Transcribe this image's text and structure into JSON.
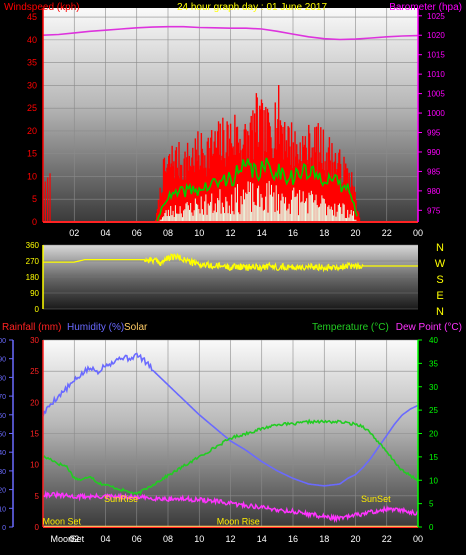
{
  "colors": {
    "background": "#000000",
    "wind_speed": "#ff0000",
    "wind_gust": "#ff0000",
    "wind_avg": "#00cc00",
    "wind_low": "#e8ffe8",
    "barometer": "#dd33dd",
    "direction": "#ffff00",
    "rainfall": "#ff2222",
    "humidity": "#6a6aff",
    "solar": "#ffcc66",
    "temperature": "#22cc22",
    "dew_point": "#ff33ff",
    "axis_left": "#ff0000",
    "axis_right": "#ff00ff",
    "axis_temp": "#00ff00",
    "sun_moon": "#ffee00"
  },
  "chart_data": [
    {
      "type": "line",
      "panel": "wind-barometer",
      "title": "24 hour graph day : 01 June 2017",
      "ylabel_left": "Windspeed (kph)",
      "ylabel_right": "Barometer (hpa)",
      "x_ticks": [
        "02",
        "04",
        "06",
        "08",
        "10",
        "12",
        "14",
        "16",
        "18",
        "20",
        "22",
        "00"
      ],
      "y_left_ticks": [
        "0",
        "5",
        "10",
        "15",
        "20",
        "25",
        "30",
        "35",
        "40",
        "45"
      ],
      "y_right_ticks": [
        "975",
        "980",
        "985",
        "990",
        "995",
        "1000",
        "1005",
        "1010",
        "1015",
        "1020",
        "1025"
      ],
      "ylim_left": [
        0,
        47
      ],
      "ylim_right": [
        972,
        1027
      ],
      "series": [
        {
          "name": "Barometer (hpa)",
          "axis": "right",
          "x": [
            0,
            1,
            2,
            3,
            4,
            5,
            6,
            7,
            8,
            9,
            10,
            11,
            12,
            13,
            14,
            15,
            16,
            17,
            18,
            19,
            20,
            21,
            22,
            23,
            24
          ],
          "values": [
            1020.0,
            1020.2,
            1020.6,
            1021.0,
            1021.3,
            1021.6,
            1021.9,
            1022.1,
            1022.2,
            1022.2,
            1022.0,
            1021.9,
            1021.8,
            1021.8,
            1021.6,
            1021.0,
            1020.3,
            1019.6,
            1019.1,
            1018.9,
            1019.0,
            1019.3,
            1019.6,
            1019.8,
            1019.9
          ]
        },
        {
          "name": "wind-gust",
          "axis": "left",
          "x": [
            0,
            0.6,
            7.2,
            7.7,
            8.3,
            9.0,
            9.7,
            10.3,
            11.0,
            11.7,
            12.3,
            13.0,
            13.7,
            14.3,
            15.0,
            15.7,
            16.3,
            17.0,
            17.7,
            18.3,
            19.0,
            19.7,
            20.0,
            20.3,
            24
          ],
          "values": [
            0,
            0,
            0,
            12,
            16,
            15,
            17,
            18,
            19,
            21,
            22,
            20,
            25,
            22,
            27,
            21,
            18,
            19,
            19,
            17,
            14,
            11,
            6,
            0,
            0
          ]
        },
        {
          "name": "wind-average",
          "axis": "left",
          "x": [
            0,
            7.3,
            7.8,
            8.5,
            9.2,
            10.0,
            10.7,
            11.5,
            12.2,
            13.0,
            13.7,
            14.5,
            15.2,
            16.0,
            16.7,
            17.5,
            18.2,
            19.0,
            19.7,
            20.2,
            24
          ],
          "values": [
            0,
            0,
            5,
            6,
            7,
            7,
            8,
            9,
            10,
            12,
            11,
            12,
            11,
            10,
            11,
            10,
            10,
            8,
            7,
            0,
            0
          ]
        },
        {
          "name": "wind-low",
          "axis": "left",
          "x": [
            0,
            7.4,
            7.9,
            8.6,
            9.3,
            10.0,
            10.8,
            11.5,
            12.3,
            13.0,
            13.8,
            14.5,
            15.3,
            16.0,
            16.8,
            17.5,
            18.3,
            19.0,
            19.8,
            20.1,
            24
          ],
          "values": [
            0,
            0,
            2,
            3,
            3,
            4,
            4,
            5,
            5,
            6,
            5,
            6,
            5,
            5,
            5,
            4,
            4,
            3,
            2,
            0,
            0
          ]
        }
      ]
    },
    {
      "type": "scatter",
      "panel": "wind-direction",
      "y_left_ticks": [
        "0",
        "90",
        "180",
        "270",
        "360"
      ],
      "y_right_labels": [
        "N",
        "W",
        "S",
        "E",
        "N"
      ],
      "ylim": [
        0,
        360
      ],
      "series": [
        {
          "name": "wind-direction",
          "x": [
            0,
            2,
            2.7,
            3,
            6,
            7,
            7.5,
            8,
            8.5,
            9,
            9.5,
            10,
            10.5,
            11,
            11.5,
            12,
            12.5,
            13,
            13.5,
            14,
            14.5,
            15,
            15.5,
            16,
            16.5,
            17,
            17.5,
            18,
            18.5,
            19,
            19.5,
            20,
            20.5,
            24
          ],
          "values": [
            264,
            264,
            278,
            278,
            278,
            276,
            260,
            285,
            295,
            280,
            262,
            250,
            245,
            240,
            242,
            236,
            240,
            232,
            238,
            235,
            240,
            236,
            238,
            235,
            237,
            233,
            238,
            236,
            240,
            235,
            240,
            242,
            242,
            242
          ]
        }
      ]
    },
    {
      "type": "line",
      "panel": "rain-humidity-temperature",
      "ylabel_left_1": "Rainfall (mm)",
      "ylabel_left_2": "Humidity (%)",
      "ylabel_left_3": "Solar",
      "ylabel_right_1": "Temperature (°C)",
      "ylabel_right_2": "Dew Point (°C)",
      "x_ticks": [
        "02",
        "04",
        "06",
        "08",
        "10",
        "12",
        "14",
        "16",
        "18",
        "20",
        "22",
        "00"
      ],
      "humidity_ticks": [
        "0",
        "10",
        "20",
        "30",
        "40",
        "50",
        "60",
        "70",
        "80",
        "90",
        "100"
      ],
      "rain_ticks": [
        "0",
        "5",
        "10",
        "15",
        "20",
        "25",
        "30"
      ],
      "temp_ticks": [
        "0",
        "5",
        "10",
        "15",
        "20",
        "25",
        "30",
        "35",
        "40"
      ],
      "ylim_humidity": [
        0,
        100
      ],
      "ylim_rain": [
        0,
        30
      ],
      "ylim_temp": [
        0,
        40
      ],
      "annotations": [
        {
          "text": "Moon Set",
          "x": 1.2,
          "y": 0.4
        },
        {
          "text": "SunRise",
          "x": 5.0,
          "y": 4.0
        },
        {
          "text": "Moon Rise",
          "x": 12.5,
          "y": 0.4
        },
        {
          "text": "SunSet",
          "x": 21.3,
          "y": 4.0
        },
        {
          "text": "Moon",
          "x": 1.2,
          "y": -1.8
        },
        {
          "text": "Set",
          "x": 2.2,
          "y": -1.8
        }
      ],
      "series": [
        {
          "name": "Humidity (%)",
          "axis": "humidity",
          "x": [
            0,
            0.5,
            1,
            1.5,
            2,
            2.5,
            3,
            3.5,
            4,
            4.5,
            5,
            5.5,
            6,
            6.5,
            7,
            8,
            9,
            10,
            11,
            12,
            13,
            14,
            15,
            16,
            17,
            18,
            19,
            19.5,
            20,
            20.5,
            21,
            21.5,
            22,
            22.5,
            23,
            23.5,
            24
          ],
          "values": [
            60,
            66,
            70,
            74,
            78,
            82,
            85,
            83,
            87,
            88,
            91,
            90,
            92,
            89,
            84,
            76,
            68,
            60,
            53,
            46,
            41,
            35,
            30,
            26,
            23,
            22,
            23,
            26,
            28,
            32,
            37,
            43,
            49,
            55,
            60,
            63,
            65
          ]
        },
        {
          "name": "Rainfall (mm)",
          "axis": "rain",
          "x": [
            0,
            24
          ],
          "values": [
            0,
            0
          ]
        },
        {
          "name": "Temperature (°C)",
          "axis": "temp",
          "x": [
            0,
            0.5,
            1,
            1.5,
            2,
            2.5,
            3,
            3.5,
            4,
            4.5,
            5,
            5.5,
            6,
            6.5,
            7,
            8,
            9,
            10,
            11,
            12,
            13,
            14,
            15,
            16,
            17,
            18,
            19,
            19.5,
            20,
            20.5,
            21,
            21.5,
            22,
            22.5,
            23,
            23.5,
            24
          ],
          "values": [
            15,
            14.5,
            13.5,
            13,
            10.5,
            10,
            11,
            9.5,
            9,
            8.5,
            8,
            7.5,
            7,
            8,
            9,
            11,
            13,
            15,
            17,
            19,
            20,
            21,
            22,
            22,
            22.5,
            22.5,
            22.5,
            22.2,
            22,
            21.5,
            20,
            18,
            16,
            14,
            12,
            11,
            10
          ]
        },
        {
          "name": "Dew Point (°C)",
          "axis": "temp",
          "x": [
            0,
            1,
            2,
            3,
            4,
            5,
            6,
            7,
            8,
            9,
            10,
            11,
            12,
            13,
            14,
            15,
            16,
            17,
            18,
            19,
            20,
            21,
            22,
            23,
            24
          ],
          "values": [
            7,
            6.8,
            6.5,
            6.5,
            6.5,
            6.4,
            6.3,
            6.2,
            6.0,
            6.0,
            5.8,
            5.5,
            5.0,
            4.6,
            4.2,
            3.7,
            3.3,
            2.8,
            2.2,
            1.8,
            2.5,
            3.2,
            3.8,
            3.5,
            3.0
          ]
        },
        {
          "name": "Solar",
          "axis": "humidity",
          "x": [
            0,
            24
          ],
          "values": [
            0,
            0
          ]
        }
      ]
    }
  ]
}
